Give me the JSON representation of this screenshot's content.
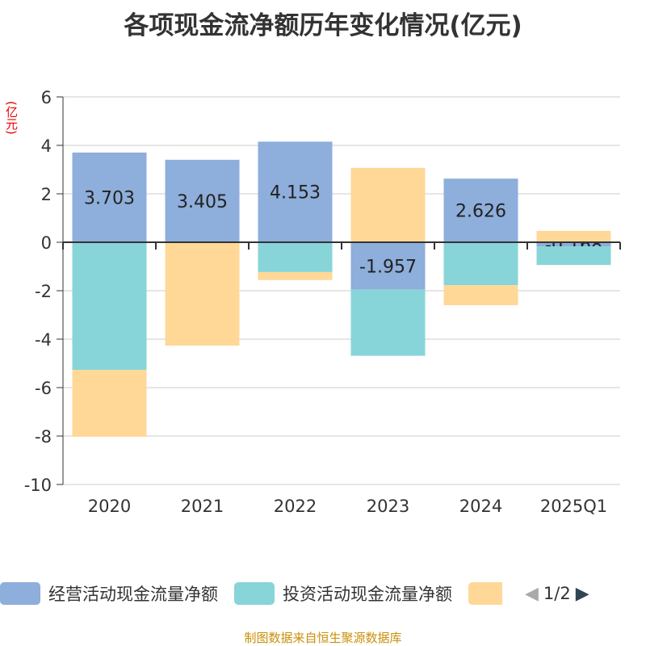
{
  "chart_data": {
    "type": "bar",
    "stacked": true,
    "title": "各项现金流净额历年变化情况(亿元)",
    "ylabel": "(亿元)",
    "categories": [
      "2020",
      "2021",
      "2022",
      "2023",
      "2024",
      "2025Q1"
    ],
    "ylim": [
      -10,
      6
    ],
    "yticks": [
      6,
      4,
      2,
      0,
      -2,
      -4,
      -6,
      -8,
      -10
    ],
    "grid": true,
    "legend_position": "bottom",
    "series": [
      {
        "name": "经营活动现金流量净额",
        "color": "#8eaedb",
        "values": [
          3.703,
          3.405,
          4.153,
          -1.957,
          2.626,
          -0.168
        ],
        "labels": [
          "3.703",
          "3.405",
          "4.153",
          "-1.957",
          "2.626",
          "-0.168"
        ]
      },
      {
        "name": "投资活动现金流量净额",
        "color": "#87d5d8",
        "values": [
          -5.27,
          0,
          -1.23,
          -2.73,
          -1.77,
          -0.77
        ]
      },
      {
        "color": "#ffd898",
        "values": [
          -2.76,
          -4.27,
          -0.33,
          3.07,
          -0.83,
          0.47
        ]
      }
    ]
  },
  "legend": {
    "page": "1/2"
  },
  "source": "制图数据来自恒生聚源数据库"
}
